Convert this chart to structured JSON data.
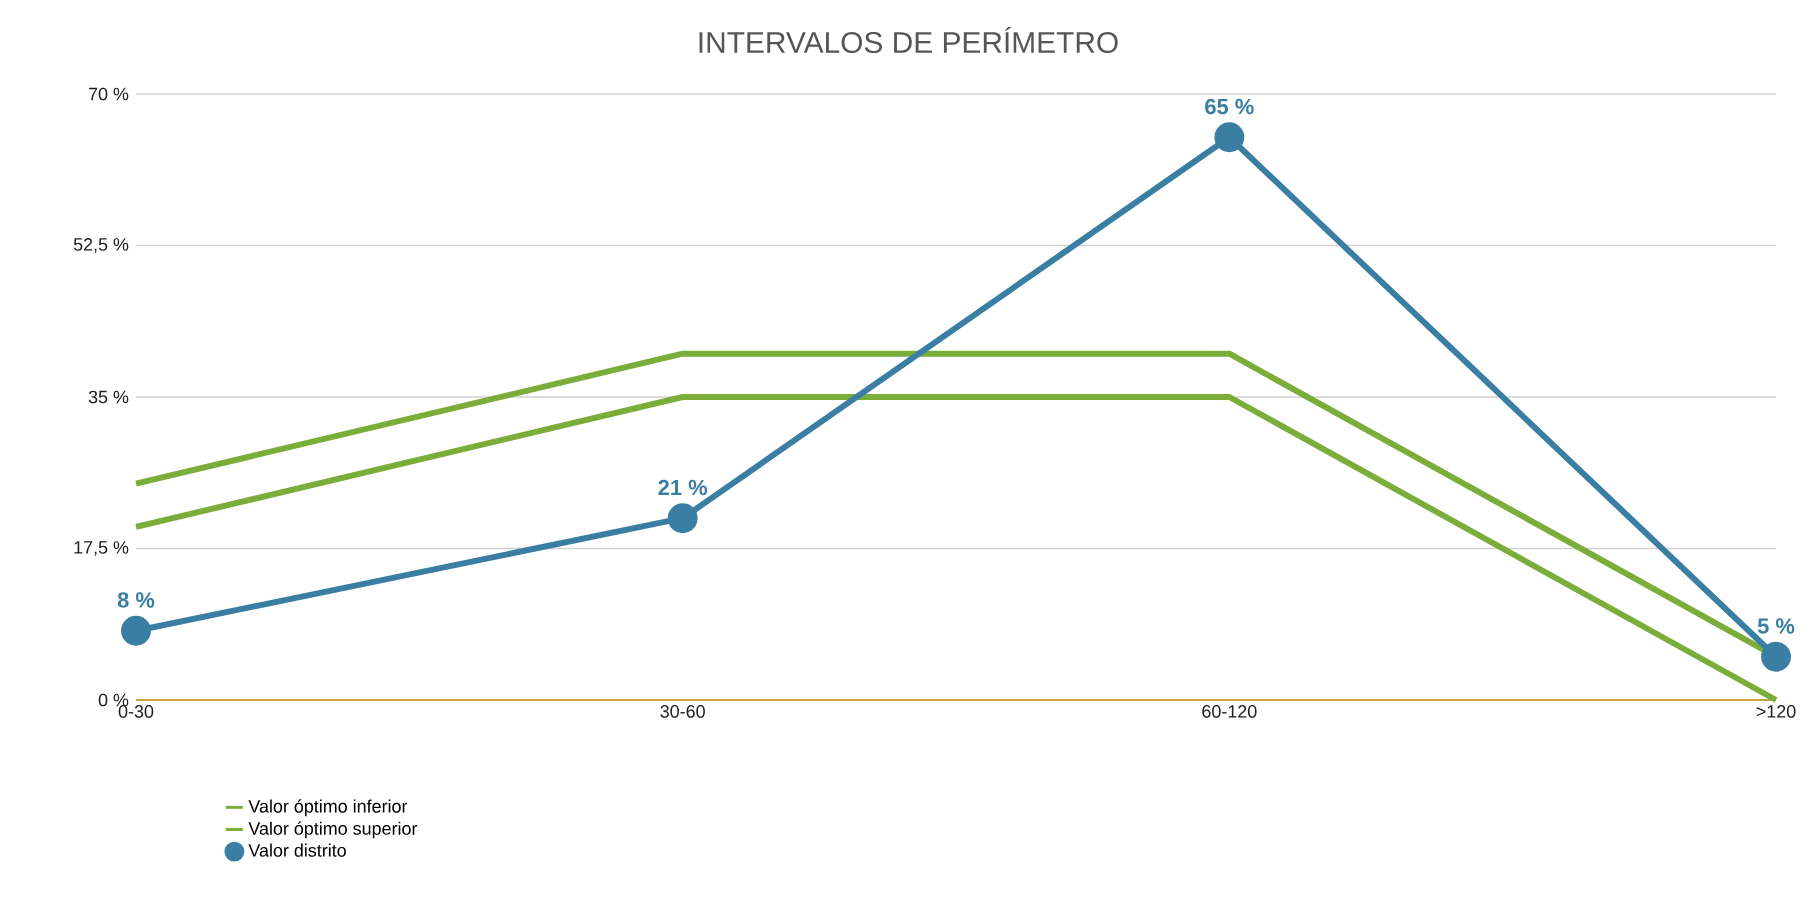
{
  "chart_data": {
    "type": "line",
    "title": "INTERVALOS DE PERÍMETRO",
    "categories": [
      "0-30",
      "30-60",
      "60-120",
      ">120"
    ],
    "series": [
      {
        "name": "Valor óptimo inferior",
        "color": "#7aad3a",
        "values": [
          20,
          35,
          35,
          0
        ],
        "marker": "none"
      },
      {
        "name": "Valor óptimo superior",
        "color": "#7aad3a",
        "values": [
          25,
          40,
          40,
          5
        ],
        "marker": "none"
      },
      {
        "name": "Valor distrito",
        "color": "#3a7fa3",
        "values": [
          8,
          21,
          65,
          5
        ],
        "marker": "circle",
        "value_labels": [
          "8 %",
          "21 %",
          "65 %",
          "5 %"
        ]
      }
    ],
    "ylim": [
      0,
      70
    ],
    "yticks": [
      {
        "value": 0,
        "label": "0 %"
      },
      {
        "value": 17.5,
        "label": "17,5 %"
      },
      {
        "value": 35,
        "label": "35 %"
      },
      {
        "value": 52.5,
        "label": "52,5 %"
      },
      {
        "value": 70,
        "label": "70 %"
      }
    ],
    "grid": "y",
    "legend": "bottom left",
    "line_style": "solid"
  }
}
